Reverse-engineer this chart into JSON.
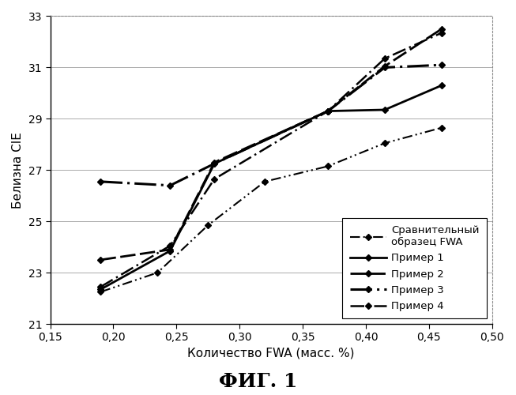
{
  "title": "ФИГ. 1",
  "xlabel": "Количество FWA (масс. %)",
  "ylabel": "Белизна CIE",
  "xlim": [
    0.15,
    0.5
  ],
  "ylim": [
    21,
    33
  ],
  "xticks": [
    0.15,
    0.2,
    0.25,
    0.3,
    0.35,
    0.4,
    0.45,
    0.5
  ],
  "yticks": [
    21,
    23,
    25,
    27,
    29,
    31,
    33
  ],
  "series": [
    {
      "label": "Сравнительный\nобразец FWA",
      "x": [
        0.19,
        0.235,
        0.275,
        0.32,
        0.37,
        0.415,
        0.46
      ],
      "y": [
        22.25,
        23.0,
        24.85,
        26.55,
        27.15,
        28.05,
        28.65
      ],
      "linestyle_key": "dash_dot_dot",
      "marker": "D",
      "markersize": 4,
      "linewidth": 1.5,
      "color": "#000000"
    },
    {
      "label": "Пример 1",
      "x": [
        0.19,
        0.245,
        0.28,
        0.37,
        0.415,
        0.46
      ],
      "y": [
        22.35,
        23.85,
        27.25,
        29.3,
        29.35,
        30.3
      ],
      "linestyle_key": "solid",
      "marker": "D",
      "markersize": 4,
      "linewidth": 2.0,
      "color": "#000000"
    },
    {
      "label": "Пример 2",
      "x": [
        0.19,
        0.245,
        0.28,
        0.37,
        0.415,
        0.46
      ],
      "y": [
        23.5,
        23.9,
        27.3,
        29.3,
        31.05,
        32.5
      ],
      "linestyle_key": "dashed",
      "marker": "D",
      "markersize": 4,
      "linewidth": 2.0,
      "color": "#000000"
    },
    {
      "label": "Пример 3",
      "x": [
        0.19,
        0.245,
        0.28,
        0.37,
        0.415,
        0.46
      ],
      "y": [
        26.55,
        26.4,
        27.25,
        29.3,
        31.0,
        31.1
      ],
      "linestyle_key": "dashdot",
      "marker": "D",
      "markersize": 4,
      "linewidth": 2.2,
      "color": "#000000"
    },
    {
      "label": "Пример 4",
      "x": [
        0.19,
        0.245,
        0.28,
        0.37,
        0.415,
        0.46
      ],
      "y": [
        22.45,
        24.05,
        26.65,
        29.3,
        31.35,
        32.35
      ],
      "linestyle_key": "dash_dot",
      "marker": "D",
      "markersize": 4,
      "linewidth": 1.8,
      "color": "#000000"
    }
  ],
  "background_color": "#ffffff",
  "grid_color": "#aaaaaa",
  "font_color": "#000000",
  "title_fontsize": 18,
  "label_fontsize": 11,
  "tick_fontsize": 10,
  "legend_fontsize": 9.5
}
